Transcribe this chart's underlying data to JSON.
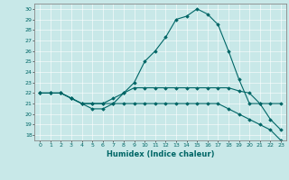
{
  "xlabel": "Humidex (Indice chaleur)",
  "bg_color": "#c8e8e8",
  "line_color": "#006666",
  "x_ticks": [
    0,
    1,
    2,
    3,
    4,
    5,
    6,
    7,
    8,
    9,
    10,
    11,
    12,
    13,
    14,
    15,
    16,
    17,
    18,
    19,
    20,
    21,
    22,
    23
  ],
  "y_ticks": [
    18,
    19,
    20,
    21,
    22,
    23,
    24,
    25,
    26,
    27,
    28,
    29,
    30
  ],
  "xlim": [
    -0.5,
    23.5
  ],
  "ylim": [
    17.5,
    30.5
  ],
  "series": [
    [
      22,
      22,
      22,
      21.5,
      21,
      21,
      21,
      21.5,
      22,
      23,
      25,
      26,
      27.3,
      29,
      29.3,
      30,
      29.5,
      28.5,
      26,
      23.3,
      21,
      21,
      19.5,
      18.5
    ],
    [
      22,
      22,
      22,
      21.5,
      21,
      21,
      21,
      21,
      22,
      22.5,
      22.5,
      22.5,
      22.5,
      22.5,
      22.5,
      22.5,
      22.5,
      22.5,
      22.5,
      22.2,
      22,
      21,
      21,
      21
    ],
    [
      22,
      22,
      22,
      21.5,
      21,
      20.5,
      20.5,
      21,
      21,
      21,
      21,
      21,
      21,
      21,
      21,
      21,
      21,
      21,
      20.5,
      20,
      19.5,
      19,
      18.5,
      17.5
    ]
  ]
}
